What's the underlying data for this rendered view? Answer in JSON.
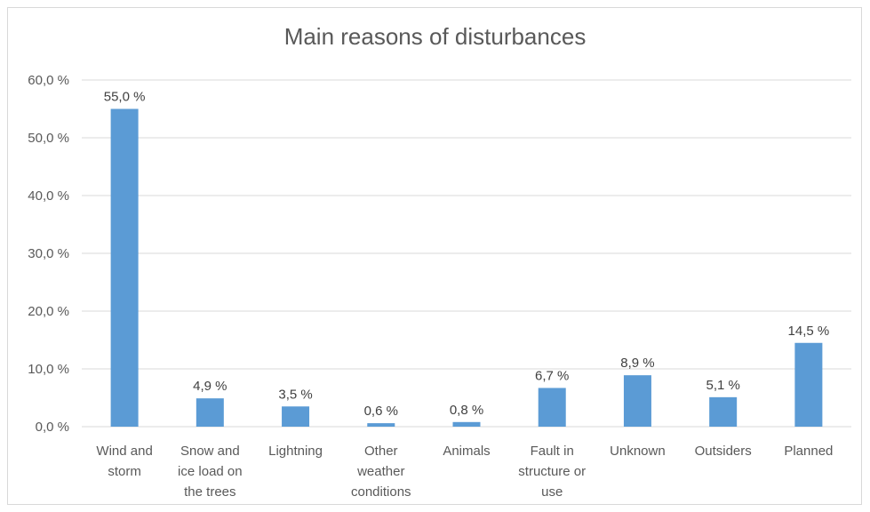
{
  "chart_data": {
    "type": "bar",
    "title": "Main reasons of disturbances",
    "categories": [
      [
        "Wind and",
        "storm"
      ],
      [
        "Snow and",
        "ice load on",
        "the trees"
      ],
      [
        "Lightning"
      ],
      [
        "Other",
        "weather",
        "conditions"
      ],
      [
        "Animals"
      ],
      [
        "Fault in",
        "structure or",
        "use"
      ],
      [
        "Unknown"
      ],
      [
        "Outsiders"
      ],
      [
        "Planned"
      ]
    ],
    "values": [
      55.0,
      4.9,
      3.5,
      0.6,
      0.8,
      6.7,
      8.9,
      5.1,
      14.5
    ],
    "data_labels": [
      "55,0 %",
      "4,9 %",
      "3,5 %",
      "0,6 %",
      "0,8 %",
      "6,7 %",
      "8,9 %",
      "5,1 %",
      "14,5 %"
    ],
    "ylim": [
      0,
      60
    ],
    "yticks": [
      0,
      10,
      20,
      30,
      40,
      50,
      60
    ],
    "ytick_labels": [
      "0,0 %",
      "10,0 %",
      "20,0 %",
      "30,0 %",
      "40,0 %",
      "50,0 %",
      "60,0 %"
    ],
    "grid": true,
    "legend": "none",
    "colors": {
      "bar": "#5b9bd5",
      "grid": "#d9d9d9",
      "text": "#595959"
    }
  }
}
